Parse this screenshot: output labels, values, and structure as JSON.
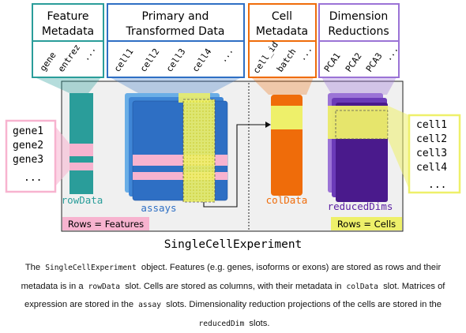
{
  "diagram": {
    "headers": {
      "feature_metadata": [
        "Feature",
        "Metadata"
      ],
      "primary_data": [
        "Primary and",
        "Transformed Data"
      ],
      "cell_metadata": [
        "Cell",
        "Metadata"
      ],
      "dim_reductions": [
        "Dimension",
        "Reductions"
      ]
    },
    "columns": {
      "feature": [
        "gene",
        "entrez",
        "..."
      ],
      "assay": [
        "cell1",
        "cell2",
        "cell3",
        "cell4",
        "..."
      ],
      "coldata": [
        "cell_id",
        "batch",
        "..."
      ],
      "reduced": [
        "PCA1",
        "PCA2",
        "PCA3",
        "..."
      ]
    },
    "rows_left": [
      "gene1",
      "gene2",
      "gene3",
      "..."
    ],
    "rows_right": [
      "cell1",
      "cell2",
      "cell3",
      "cell4",
      "..."
    ],
    "slots": {
      "rowdata": "rowData",
      "assays": "assays",
      "coldata": "colData",
      "reduceddims": "reducedDims"
    },
    "banners": {
      "rows_features": "Rows = Features",
      "rows_cells": "Rows = Cells"
    },
    "title": "SingleCellExperiment",
    "colors": {
      "teal": "#2a9d9a",
      "blue": "#2e6fc4",
      "light_blue": "#6aaee6",
      "orange": "#ef6c0a",
      "purple": "#5b1fa3",
      "lilac": "#9b73d6",
      "pink": "#f7b3cf",
      "yellow": "#eef06a",
      "grey_panel": "#f0f0f0"
    }
  },
  "caption": {
    "p1": "The",
    "c1": "SingleCellExperiment",
    "p2": "object. Features (e.g. genes, isoforms or exons) are stored as rows and their metadata is in a",
    "c2": "rowData",
    "p3": "slot. Cells are stored as columns, with their metadata in",
    "c3": "colData",
    "p4": "slot. Matrices of expression are stored in the",
    "c4": "assay",
    "p5": "slots. Dimensionality reduction projections of the cells are stored in the",
    "c5": "reducedDim",
    "p6": "slots."
  }
}
